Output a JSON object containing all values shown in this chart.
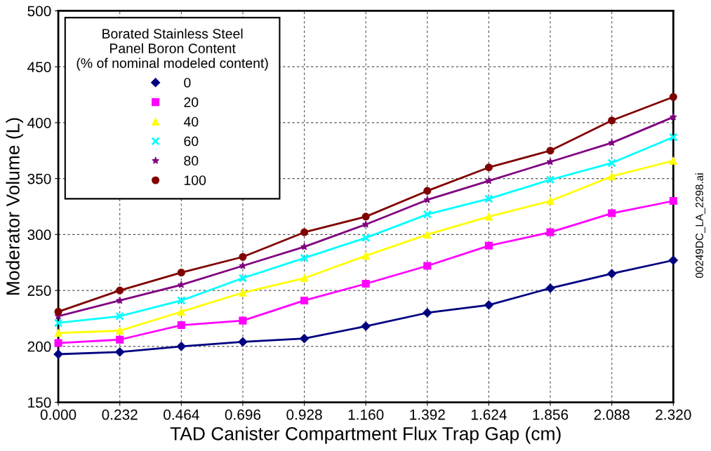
{
  "chart_data": {
    "type": "line",
    "xlabel": "TAD Canister Compartment Flux Trap Gap (cm)",
    "ylabel": "Moderator Volume (L)",
    "legend_title": "Borated Stainless Steel\nPanel Boron Content\n(% of nominal modeled content)",
    "x": [
      0.0,
      0.232,
      0.464,
      0.696,
      0.928,
      1.16,
      1.392,
      1.624,
      1.856,
      2.088,
      2.32
    ],
    "series": [
      {
        "name": "0",
        "color": "#000080",
        "marker": "diamond",
        "values": [
          193,
          195,
          200,
          204,
          207,
          218,
          230,
          237,
          252,
          265,
          277
        ]
      },
      {
        "name": "20",
        "color": "#ff00ff",
        "marker": "square",
        "values": [
          203,
          206,
          219,
          223,
          241,
          256,
          272,
          290,
          302,
          319,
          330
        ]
      },
      {
        "name": "40",
        "color": "#ffff00",
        "marker": "triangle",
        "values": [
          212,
          214,
          231,
          248,
          261,
          281,
          300,
          316,
          330,
          352,
          366
        ]
      },
      {
        "name": "60",
        "color": "#00ffff",
        "marker": "cross",
        "values": [
          221,
          227,
          241,
          261,
          279,
          297,
          318,
          332,
          349,
          364,
          387
        ]
      },
      {
        "name": "80",
        "color": "#800080",
        "marker": "star",
        "values": [
          227,
          241,
          255,
          272,
          289,
          309,
          331,
          348,
          365,
          382,
          405
        ]
      },
      {
        "name": "100",
        "color": "#800000",
        "marker": "circle",
        "values": [
          231,
          250,
          266,
          280,
          302,
          316,
          339,
          360,
          375,
          402,
          423
        ]
      }
    ],
    "xlim": [
      0.0,
      2.32
    ],
    "xticks": [
      {
        "value": 0.0,
        "label": "0.000"
      },
      {
        "value": 0.232,
        "label": "0.232"
      },
      {
        "value": 0.464,
        "label": "0.464"
      },
      {
        "value": 0.696,
        "label": "0.696"
      },
      {
        "value": 0.928,
        "label": "0.928"
      },
      {
        "value": 1.16,
        "label": "1.160"
      },
      {
        "value": 1.392,
        "label": "1.392"
      },
      {
        "value": 1.624,
        "label": "1.624"
      },
      {
        "value": 1.856,
        "label": "1.856"
      },
      {
        "value": 2.088,
        "label": "2.088"
      },
      {
        "value": 2.32,
        "label": "2.320"
      }
    ],
    "ylim": [
      150,
      500
    ],
    "yticks": [
      150,
      200,
      250,
      300,
      350,
      400,
      450,
      500
    ],
    "grid": true,
    "legend": "top left",
    "line_style": "solid",
    "annotations": [
      "00249DC_LA_2298.ai"
    ]
  }
}
